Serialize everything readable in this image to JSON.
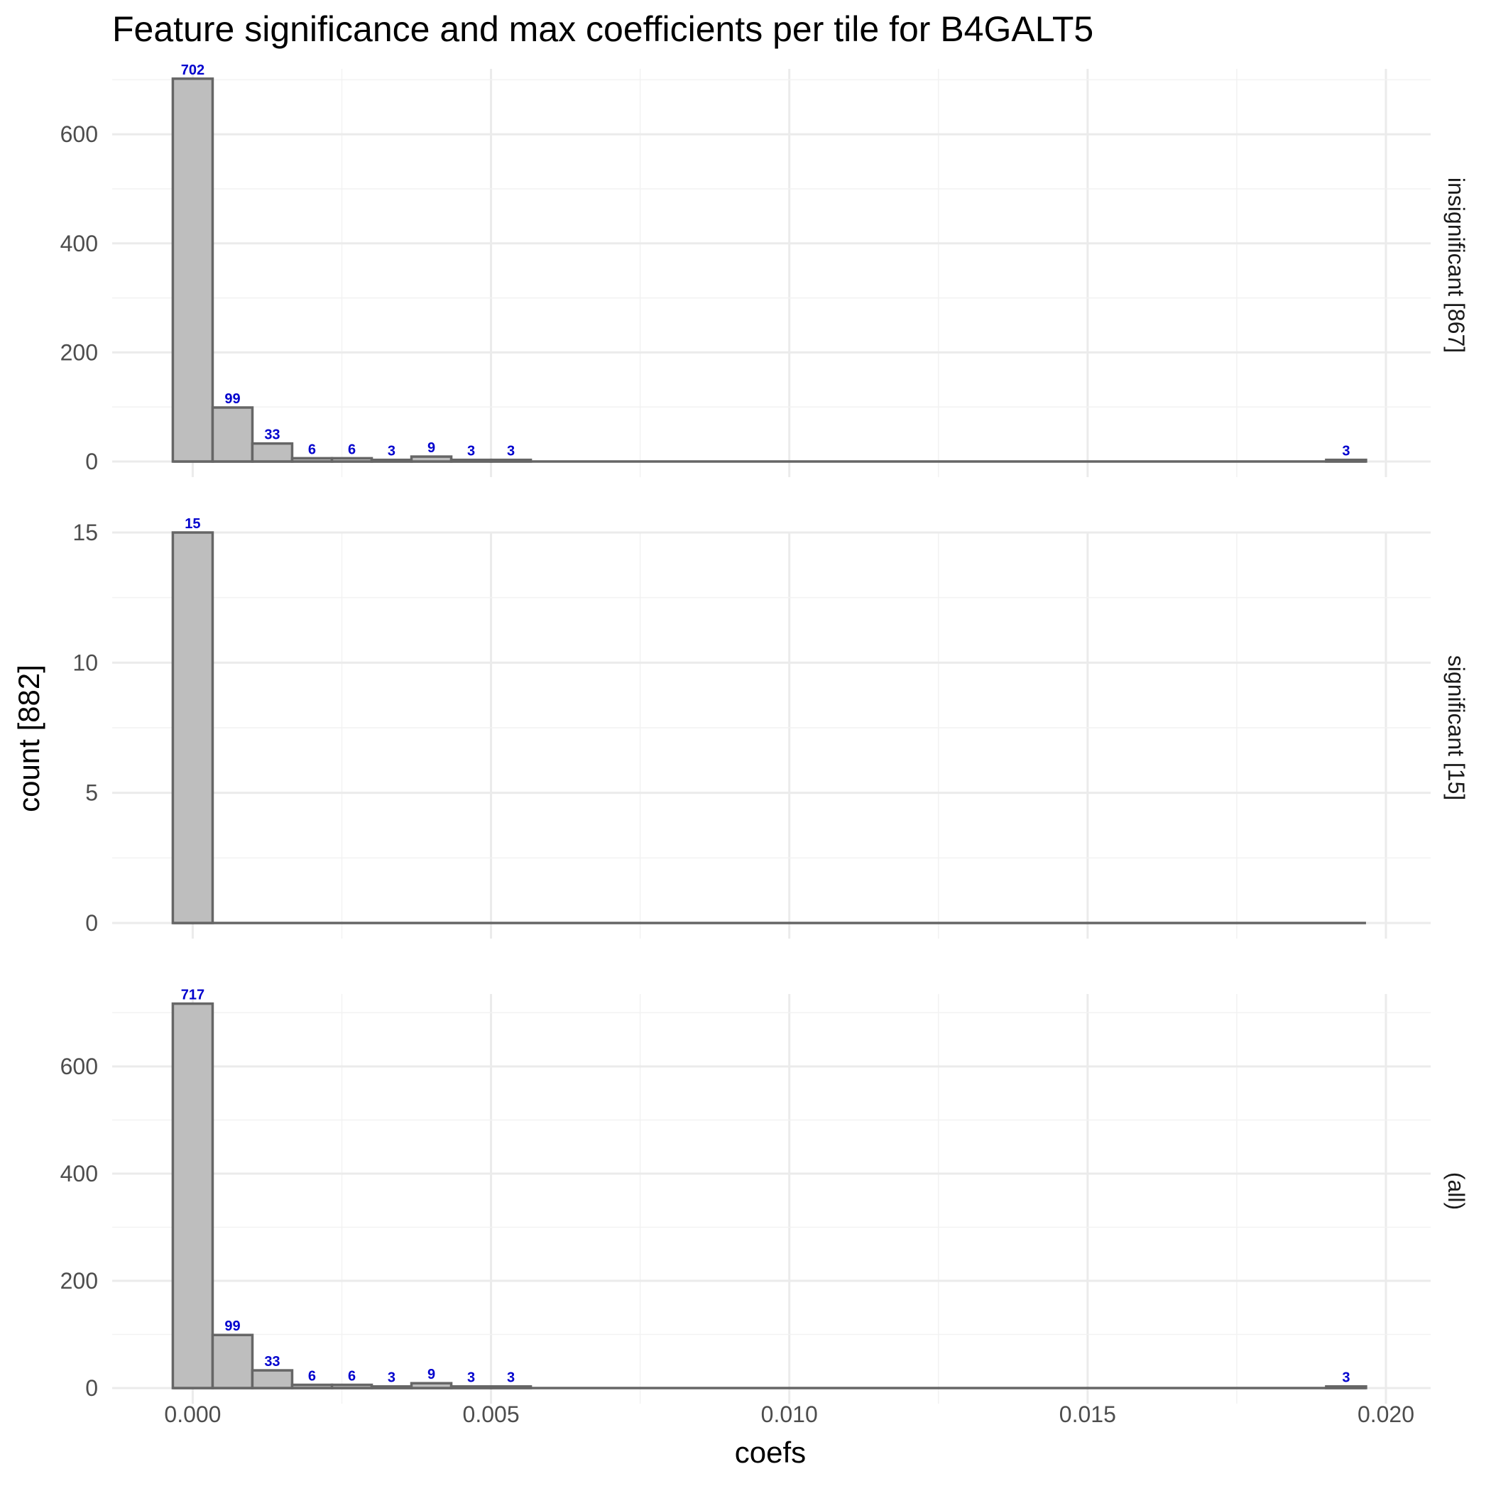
{
  "chart_data": {
    "type": "bar",
    "title": "Feature significance and max coefficients per tile for B4GALT5",
    "xlabel": "coefs",
    "ylabel": "count [882]",
    "x_ticks": [
      "0.000",
      "0.005",
      "0.010",
      "0.015",
      "0.020"
    ],
    "x_tick_values": [
      0,
      0.005,
      0.01,
      0.015,
      0.02
    ],
    "xlim": [
      -0.00135,
      0.02075
    ],
    "bin_width": 0.000667,
    "bin_centers": [
      0,
      0.000667,
      0.001333,
      0.002,
      0.002667,
      0.003333,
      0.004,
      0.004667,
      0.005333,
      0.019333
    ],
    "grid": true,
    "panels": [
      {
        "strip_label": "insignificant [867]",
        "ylim": [
          0,
          720
        ],
        "y_ticks": [
          0,
          200,
          400,
          600
        ],
        "values": [
          702,
          99,
          33,
          6,
          6,
          3,
          9,
          3,
          3,
          3
        ],
        "labels": [
          "702",
          "99",
          "33",
          "6",
          "6",
          "3",
          "9",
          "3",
          "3",
          "3"
        ]
      },
      {
        "strip_label": "significant [15]",
        "ylim": [
          0,
          15
        ],
        "y_ticks": [
          0,
          5,
          10,
          15
        ],
        "values": [
          15,
          0,
          0,
          0,
          0,
          0,
          0,
          0,
          0,
          0
        ],
        "labels": [
          "15",
          "",
          "",
          "",
          "",
          "",
          "",
          "",
          "",
          ""
        ]
      },
      {
        "strip_label": "(all)",
        "ylim": [
          0,
          735
        ],
        "y_ticks": [
          0,
          200,
          400,
          600
        ],
        "values": [
          717,
          99,
          33,
          6,
          6,
          3,
          9,
          3,
          3,
          3
        ],
        "labels": [
          "717",
          "99",
          "33",
          "6",
          "6",
          "3",
          "9",
          "3",
          "3",
          "3"
        ]
      }
    ]
  }
}
